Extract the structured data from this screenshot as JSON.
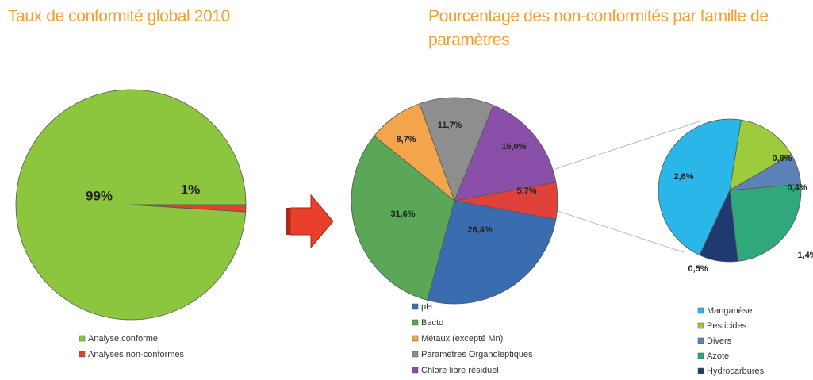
{
  "chart_data": [
    {
      "type": "pie",
      "title": "Taux de conformité global 2010",
      "categories": [
        "Analyse conforme",
        "Analyses non-conformes"
      ],
      "values": [
        99,
        1
      ],
      "value_labels": [
        "99%",
        "1%"
      ],
      "colors": [
        "#8cc63e",
        "#e2402c"
      ]
    },
    {
      "type": "pie",
      "title": "Pourcentage des non-conformités par famille de paramètres",
      "categories": [
        "pH",
        "Bacto",
        "Métaux (excepté Mn)",
        "Paramètres Organoleptiques",
        "Chlore libre résiduel",
        null
      ],
      "values": [
        26.4,
        31.6,
        8.7,
        11.7,
        16.0,
        5.7
      ],
      "value_labels": [
        "26,4%",
        "31,6%",
        "8,7%",
        "11,7%",
        "16,0%",
        "5,7%"
      ],
      "colors": [
        "#3a6db0",
        "#5aa857",
        "#f2a54a",
        "#8e8e8e",
        "#8a4fa8",
        "#e0413a"
      ]
    },
    {
      "type": "pie",
      "categories": [
        "Manganèse",
        "Pesticides",
        "Divers",
        "Azote",
        "Hydrocarbures"
      ],
      "values": [
        2.6,
        0.8,
        0.4,
        1.4,
        0.5
      ],
      "value_labels": [
        "2,6%",
        "0,8%",
        "0,4%",
        "1,4%",
        "0,5%"
      ],
      "colors": [
        "#2bb6ea",
        "#9ccb3b",
        "#5a82b6",
        "#2fa87c",
        "#1f3a70"
      ]
    }
  ]
}
